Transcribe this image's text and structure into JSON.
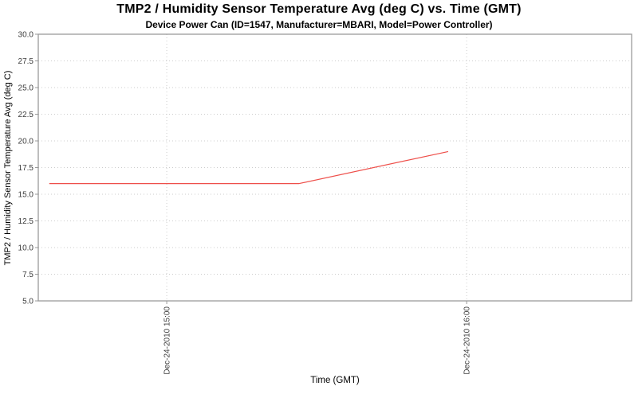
{
  "chart_data": {
    "type": "line",
    "title": "TMP2 / Humidity Sensor Temperature Avg (deg C) vs. Time (GMT)",
    "subtitle": "Device Power Can (ID=1547, Manufacturer=MBARI, Model=Power Controller)",
    "xlabel": "Time (GMT)",
    "ylabel": "TMP2 / Humidity Sensor Temperature Avg (deg C)",
    "ylim": [
      5.0,
      30.0
    ],
    "y_tick_step": 2.5,
    "y_tick_labels": [
      "30.0",
      "27.5",
      "25.0",
      "22.5",
      "20.0",
      "17.5",
      "15.0",
      "12.5",
      "10.0",
      "7.5",
      "5.0"
    ],
    "x_range_minutes": [
      -25.7,
      93.0
    ],
    "x_ticks": [
      {
        "label": "Dec-24-2010 15:00",
        "minutes": 0
      },
      {
        "label": "Dec-24-2010 16:00",
        "minutes": 60
      }
    ],
    "grid": "dotted",
    "legend": "none",
    "series": [
      {
        "name": "TMP2 / Humidity Sensor Temperature Avg",
        "color": "#ee4f4a",
        "points": [
          {
            "time_est": "Dec-24-2010 14:37",
            "minutes": -23.5,
            "value": 16.0
          },
          {
            "time_est": "Dec-24-2010 15:27",
            "minutes": 26.5,
            "value": 16.0
          },
          {
            "time_est": "Dec-24-2010 15:56",
            "minutes": 56.3,
            "value": 19.0
          }
        ]
      }
    ],
    "colors": {
      "grid": "#cccccc",
      "axis_outline": "#9a9a9a",
      "tick_label": "#3c3c3c",
      "text": "#000000",
      "background": "#ffffff"
    }
  }
}
